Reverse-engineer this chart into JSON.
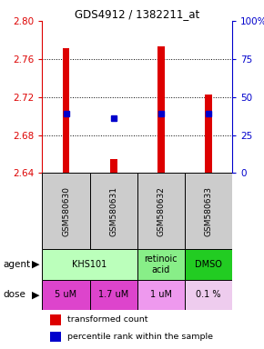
{
  "title": "GDS4912 / 1382211_at",
  "samples": [
    "GSM580630",
    "GSM580631",
    "GSM580632",
    "GSM580633"
  ],
  "bar_values": [
    2.771,
    2.655,
    2.773,
    2.723
  ],
  "bar_base": 2.64,
  "percentile_values": [
    2.703,
    2.698,
    2.703,
    2.703
  ],
  "ylim": [
    2.64,
    2.8
  ],
  "yticks_left": [
    2.64,
    2.68,
    2.72,
    2.76,
    2.8
  ],
  "yticks_right": [
    0,
    25,
    50,
    75,
    100
  ],
  "bar_color": "#dd0000",
  "dot_color": "#0000cc",
  "agent_spans": [
    {
      "cols": [
        0,
        1
      ],
      "label": "KHS101",
      "color": "#bbffbb"
    },
    {
      "cols": [
        2,
        2
      ],
      "label": "retinoic\nacid",
      "color": "#88ee88"
    },
    {
      "cols": [
        3,
        3
      ],
      "label": "DMSO",
      "color": "#22cc22"
    }
  ],
  "dose_labels": [
    "5 uM",
    "1.7 uM",
    "1 uM",
    "0.1 %"
  ],
  "dose_colors": [
    "#dd44cc",
    "#dd44cc",
    "#ee99ee",
    "#eeccee"
  ],
  "sample_bg": "#cccccc",
  "legend_red": "transformed count",
  "legend_blue": "percentile rank within the sample"
}
